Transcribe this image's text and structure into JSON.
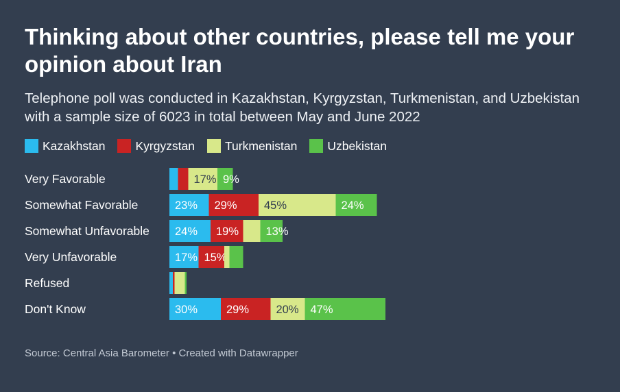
{
  "title": "Thinking about other countries, please tell me your opinion about Iran",
  "subtitle": "Telephone poll was conducted in Kazakhstan, Kyrgyzstan, Turkmenistan, and Uzbekistan with a sample size of 6023 in total between May and June 2022",
  "source": "Source: Central Asia Barometer • Created with Datawrapper",
  "chart_data": {
    "type": "bar",
    "orientation": "horizontal",
    "stacked": true,
    "legend_position": "top",
    "grid": false,
    "categories": [
      "Very Favorable",
      "Somewhat Favorable",
      "Somewhat Unfavorable",
      "Very Unfavorable",
      "Refused",
      "Don't Know"
    ],
    "series": [
      {
        "name": "Kazakhstan",
        "color": "#2bbbee",
        "values": [
          5,
          23,
          24,
          17,
          2,
          30
        ],
        "labels": [
          "",
          "23%",
          "24%",
          "17%",
          "",
          "30%"
        ]
      },
      {
        "name": "Kyrgyzstan",
        "color": "#c92323",
        "values": [
          6,
          29,
          19,
          15,
          1,
          29
        ],
        "labels": [
          "",
          "29%",
          "19%",
          "15%",
          "",
          "29%"
        ]
      },
      {
        "name": "Turkmenistan",
        "color": "#d8e88a",
        "values": [
          17,
          45,
          10,
          3,
          6,
          20
        ],
        "labels": [
          "17%",
          "45%",
          "",
          "",
          "",
          "20%"
        ]
      },
      {
        "name": "Uzbekistan",
        "color": "#5ac24a",
        "values": [
          9,
          24,
          13,
          8,
          1,
          47
        ],
        "labels": [
          "9%",
          "24%",
          "13%",
          "",
          "",
          "47%"
        ]
      }
    ]
  }
}
